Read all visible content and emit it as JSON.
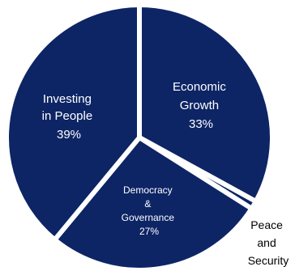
{
  "chart_data": {
    "type": "pie",
    "slices": [
      {
        "name": "Economic Growth",
        "label_lines": [
          "Economic",
          "Growth"
        ],
        "value_label": "33%",
        "value": 33
      },
      {
        "name": "Peace and Security",
        "label_lines": [
          "Peace",
          "and",
          "Security"
        ],
        "value_label": "",
        "value": 1
      },
      {
        "name": "Democracy & Governance",
        "label_lines": [
          "Democracy",
          "&",
          "Governance"
        ],
        "value_label": "27%",
        "value": 27
      },
      {
        "name": "Investing in People",
        "label_lines": [
          "Investing",
          "in People"
        ],
        "value_label": "39%",
        "value": 39
      }
    ],
    "colors": {
      "slice": "#0d2565",
      "background": "#ffffff",
      "outside_text": "#000000",
      "inside_text": "#ffffff"
    },
    "legend": "none"
  }
}
